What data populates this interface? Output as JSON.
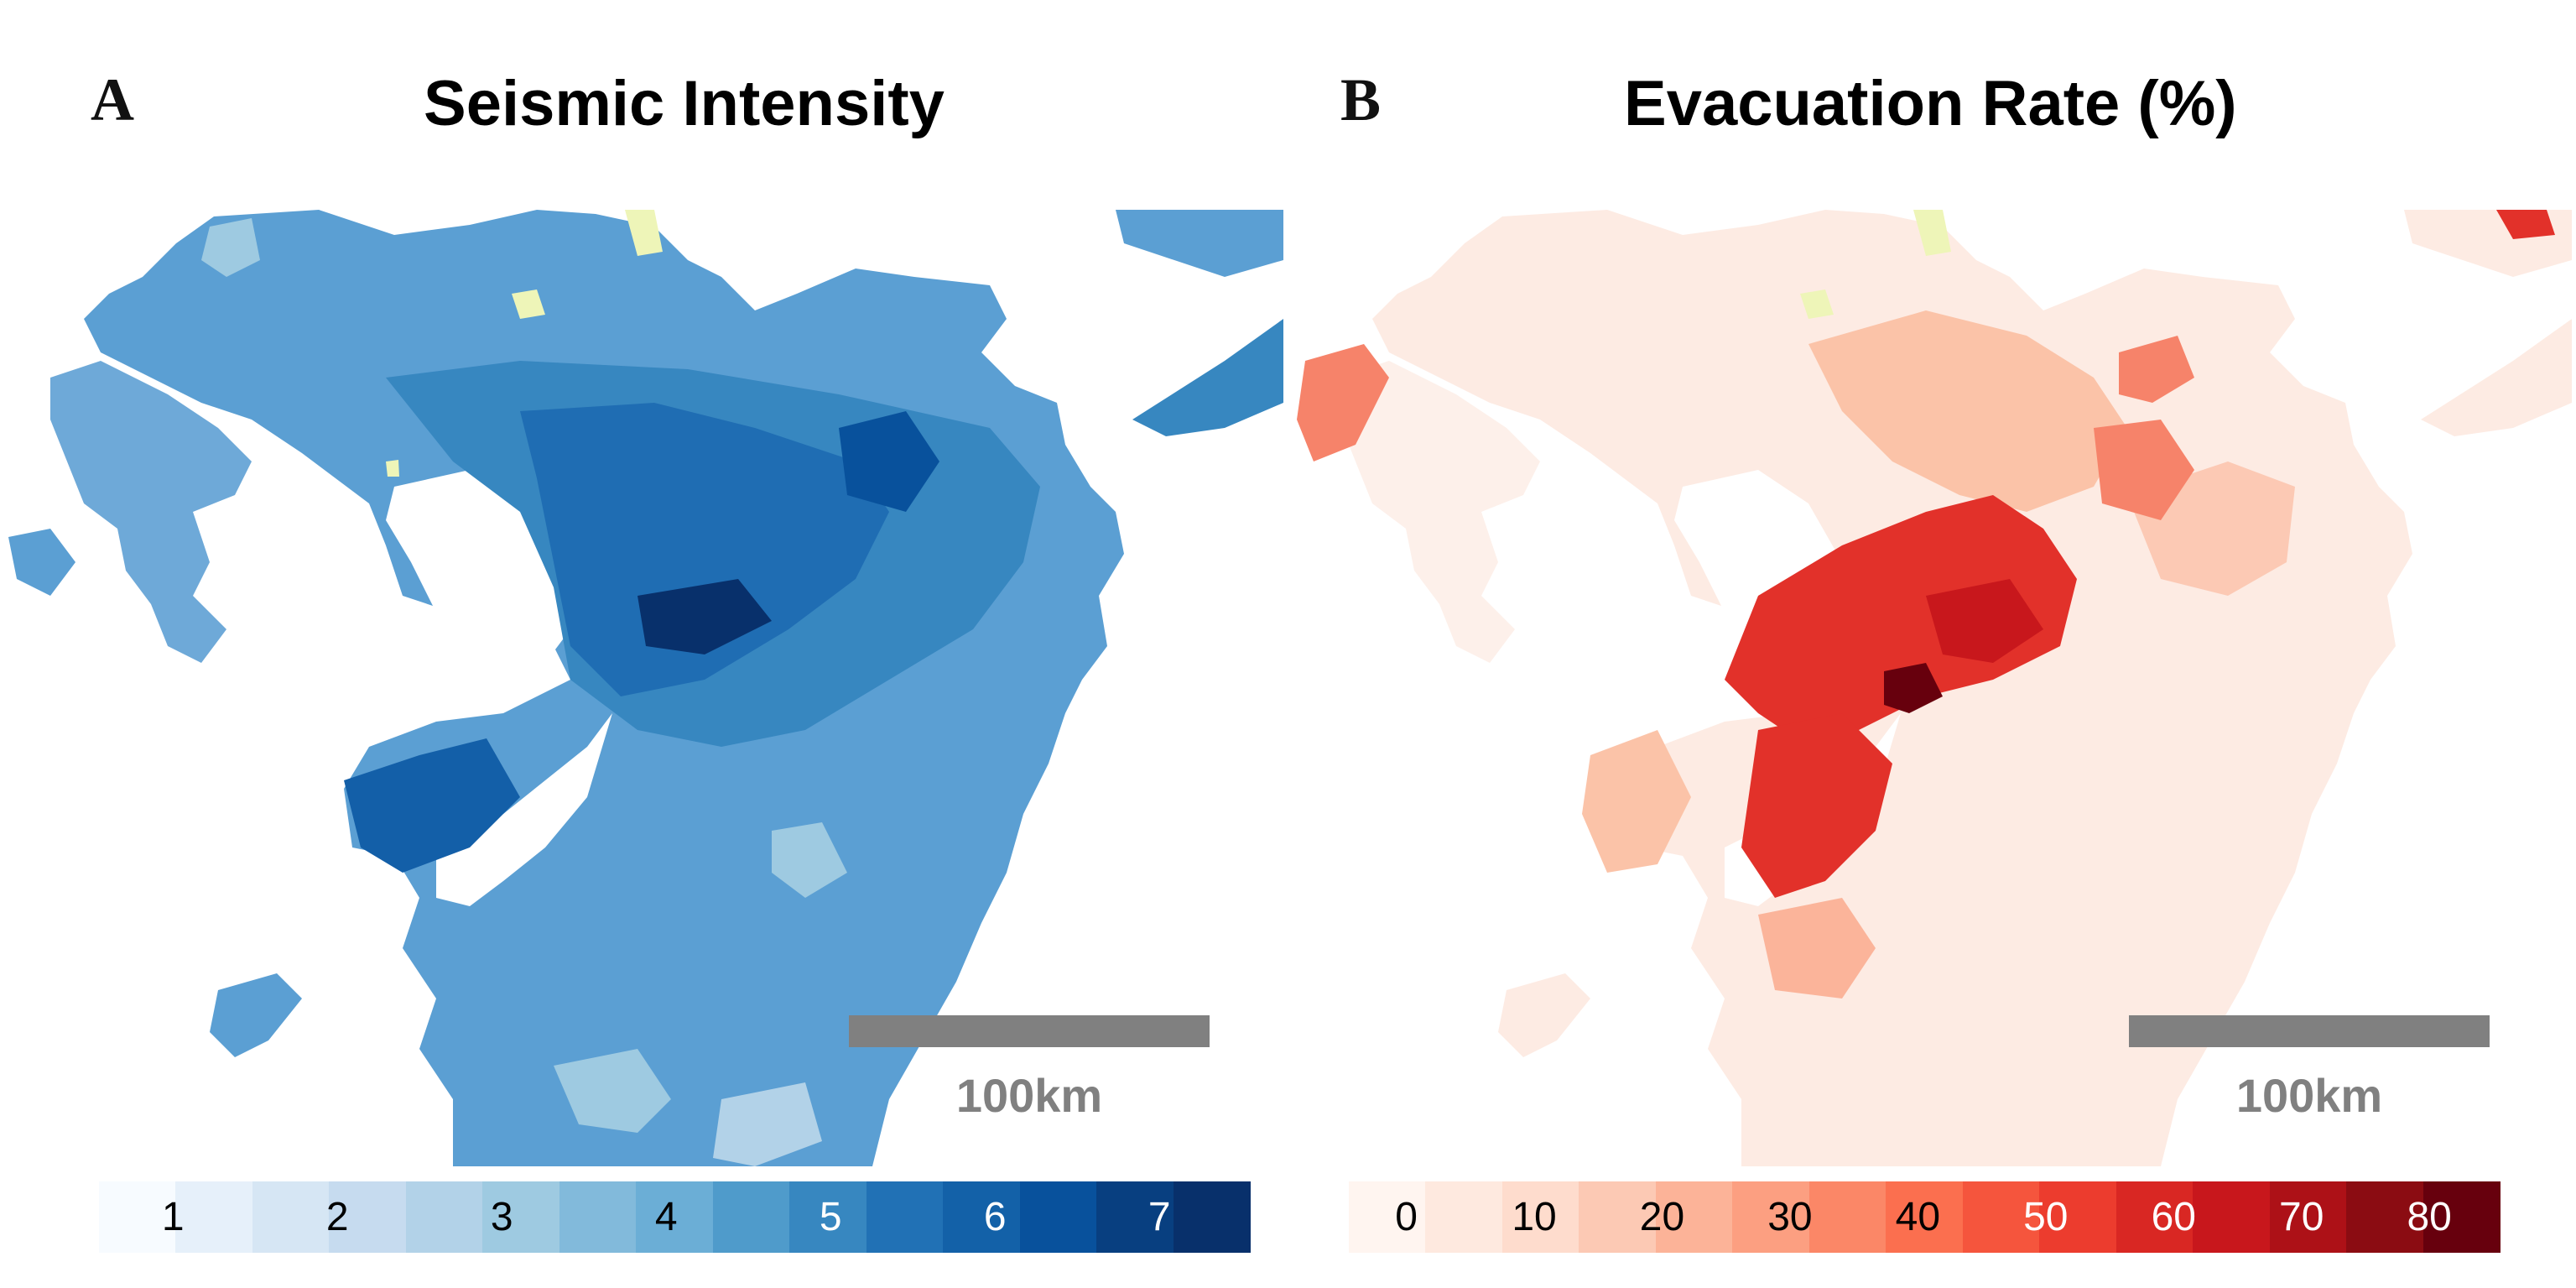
{
  "panels": [
    {
      "letter": "A",
      "title": "Seismic Intensity",
      "scale_bar_label": "100km",
      "legend": {
        "colors": [
          "#f7fbff",
          "#e6f0fa",
          "#d6e6f4",
          "#c6dbef",
          "#b2d2e8",
          "#9ecae1",
          "#82badb",
          "#6baed6",
          "#4f9bcb",
          "#3787c0",
          "#2171b5",
          "#1361a8",
          "#08519c",
          "#083f80",
          "#08306b"
        ],
        "labels": [
          "1",
          "2",
          "3",
          "4",
          "5",
          "6",
          "7"
        ],
        "label_colors": [
          "#000000",
          "#000000",
          "#000000",
          "#000000",
          "#ffffff",
          "#ffffff",
          "#ffffff"
        ]
      }
    },
    {
      "letter": "B",
      "title": "Evacuation Rate (%)",
      "scale_bar_label": "100km",
      "legend": {
        "colors": [
          "#fff5f0",
          "#fee9df",
          "#fedccd",
          "#fcc9b4",
          "#fcb398",
          "#fc9f81",
          "#fb8767",
          "#fb6f4f",
          "#f5553d",
          "#ec3c2e",
          "#d92723",
          "#c8171c",
          "#ad1117",
          "#8b0c12",
          "#67000d"
        ],
        "labels": [
          "0",
          "10",
          "20",
          "30",
          "40",
          "50",
          "60",
          "70",
          "80"
        ],
        "label_colors": [
          "#000000",
          "#000000",
          "#000000",
          "#000000",
          "#000000",
          "#ffffff",
          "#ffffff",
          "#ffffff",
          "#ffffff"
        ]
      }
    }
  ],
  "map_colors": {
    "seismic_outer": "#5b9fd3",
    "seismic_mid": "#2f7dbf",
    "seismic_strong": "#135fa8",
    "seismic_core": "#08306b",
    "seismic_pale": "#9ecae1",
    "evac_base": "#fdebe3",
    "evac_light": "#fbc3a8",
    "evac_mid": "#f6836a",
    "evac_strong": "#e2312a",
    "evac_core": "#a50f15",
    "evac_darkest": "#67000d",
    "nodata": "#eef5b8",
    "scale_bar": "#808080"
  }
}
